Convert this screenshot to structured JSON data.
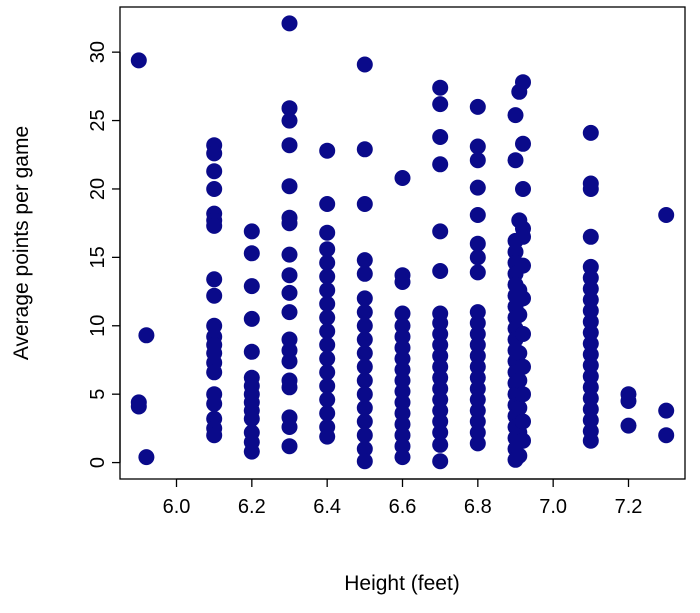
{
  "chart_data": {
    "type": "scatter",
    "title": "",
    "xlabel": "Height (feet)",
    "ylabel": "Average points per game",
    "xlim": [
      5.85,
      7.35
    ],
    "ylim": [
      -1.2,
      33.3
    ],
    "x_ticks": [
      6.0,
      6.2,
      6.4,
      6.6,
      6.8,
      7.0,
      7.2
    ],
    "x_tick_labels": [
      "6.0",
      "6.2",
      "6.4",
      "6.6",
      "6.8",
      "7.0",
      "7.2"
    ],
    "y_ticks": [
      0,
      5,
      10,
      15,
      20,
      25,
      30
    ],
    "y_tick_labels": [
      "0",
      "5",
      "10",
      "15",
      "20",
      "25",
      "30"
    ],
    "grid": false,
    "marker_color": "#0a0a8a",
    "points": [
      [
        5.9,
        29.4
      ],
      [
        5.9,
        4.1
      ],
      [
        5.9,
        4.4
      ],
      [
        5.92,
        9.3
      ],
      [
        5.92,
        0.4
      ],
      [
        6.1,
        23.2
      ],
      [
        6.1,
        22.6
      ],
      [
        6.1,
        21.3
      ],
      [
        6.1,
        20.0
      ],
      [
        6.1,
        18.2
      ],
      [
        6.1,
        17.7
      ],
      [
        6.1,
        17.3
      ],
      [
        6.1,
        13.4
      ],
      [
        6.1,
        12.2
      ],
      [
        6.1,
        10.0
      ],
      [
        6.1,
        9.2
      ],
      [
        6.1,
        8.6
      ],
      [
        6.1,
        8.0
      ],
      [
        6.1,
        7.3
      ],
      [
        6.1,
        6.6
      ],
      [
        6.1,
        5.0
      ],
      [
        6.1,
        4.3
      ],
      [
        6.1,
        3.2
      ],
      [
        6.1,
        2.5
      ],
      [
        6.1,
        2.0
      ],
      [
        6.2,
        16.9
      ],
      [
        6.2,
        15.3
      ],
      [
        6.2,
        12.9
      ],
      [
        6.2,
        10.5
      ],
      [
        6.2,
        8.1
      ],
      [
        6.2,
        6.2
      ],
      [
        6.2,
        5.6
      ],
      [
        6.2,
        5.0
      ],
      [
        6.2,
        4.4
      ],
      [
        6.2,
        3.8
      ],
      [
        6.2,
        3.2
      ],
      [
        6.2,
        2.2
      ],
      [
        6.2,
        1.5
      ],
      [
        6.2,
        0.8
      ],
      [
        6.3,
        32.1
      ],
      [
        6.3,
        25.9
      ],
      [
        6.3,
        25.0
      ],
      [
        6.3,
        23.2
      ],
      [
        6.3,
        20.2
      ],
      [
        6.3,
        17.9
      ],
      [
        6.3,
        17.5
      ],
      [
        6.3,
        15.2
      ],
      [
        6.3,
        13.7
      ],
      [
        6.3,
        12.4
      ],
      [
        6.3,
        11.0
      ],
      [
        6.3,
        9.0
      ],
      [
        6.3,
        8.2
      ],
      [
        6.3,
        7.4
      ],
      [
        6.3,
        6.0
      ],
      [
        6.3,
        5.5
      ],
      [
        6.3,
        3.3
      ],
      [
        6.3,
        2.6
      ],
      [
        6.3,
        1.2
      ],
      [
        6.4,
        22.8
      ],
      [
        6.4,
        18.9
      ],
      [
        6.4,
        16.8
      ],
      [
        6.4,
        15.6
      ],
      [
        6.4,
        14.6
      ],
      [
        6.4,
        13.6
      ],
      [
        6.4,
        12.6
      ],
      [
        6.4,
        11.6
      ],
      [
        6.4,
        10.6
      ],
      [
        6.4,
        9.6
      ],
      [
        6.4,
        8.6
      ],
      [
        6.4,
        7.6
      ],
      [
        6.4,
        6.6
      ],
      [
        6.4,
        5.6
      ],
      [
        6.4,
        4.6
      ],
      [
        6.4,
        3.6
      ],
      [
        6.4,
        2.6
      ],
      [
        6.4,
        1.9
      ],
      [
        6.5,
        29.1
      ],
      [
        6.5,
        22.9
      ],
      [
        6.5,
        18.9
      ],
      [
        6.5,
        14.8
      ],
      [
        6.5,
        13.8
      ],
      [
        6.5,
        12.0
      ],
      [
        6.5,
        11.0
      ],
      [
        6.5,
        10.0
      ],
      [
        6.5,
        9.0
      ],
      [
        6.5,
        8.0
      ],
      [
        6.5,
        7.0
      ],
      [
        6.5,
        6.0
      ],
      [
        6.5,
        5.0
      ],
      [
        6.5,
        4.0
      ],
      [
        6.5,
        3.0
      ],
      [
        6.5,
        2.0
      ],
      [
        6.5,
        1.0
      ],
      [
        6.5,
        0.1
      ],
      [
        6.6,
        20.8
      ],
      [
        6.6,
        13.7
      ],
      [
        6.6,
        13.2
      ],
      [
        6.6,
        10.9
      ],
      [
        6.6,
        10.0
      ],
      [
        6.6,
        9.2
      ],
      [
        6.6,
        8.4
      ],
      [
        6.6,
        7.6
      ],
      [
        6.6,
        6.8
      ],
      [
        6.6,
        6.0
      ],
      [
        6.6,
        5.2
      ],
      [
        6.6,
        4.4
      ],
      [
        6.6,
        3.6
      ],
      [
        6.6,
        2.8
      ],
      [
        6.6,
        2.0
      ],
      [
        6.6,
        1.2
      ],
      [
        6.6,
        0.4
      ],
      [
        6.7,
        27.4
      ],
      [
        6.7,
        26.2
      ],
      [
        6.7,
        23.8
      ],
      [
        6.7,
        21.8
      ],
      [
        6.7,
        16.9
      ],
      [
        6.7,
        14.0
      ],
      [
        6.7,
        10.9
      ],
      [
        6.7,
        10.2
      ],
      [
        6.7,
        9.4
      ],
      [
        6.7,
        8.6
      ],
      [
        6.7,
        7.8
      ],
      [
        6.7,
        7.0
      ],
      [
        6.7,
        6.2
      ],
      [
        6.7,
        5.4
      ],
      [
        6.7,
        4.6
      ],
      [
        6.7,
        3.8
      ],
      [
        6.7,
        3.0
      ],
      [
        6.7,
        2.2
      ],
      [
        6.7,
        1.3
      ],
      [
        6.7,
        0.1
      ],
      [
        6.8,
        26.0
      ],
      [
        6.8,
        23.1
      ],
      [
        6.8,
        22.1
      ],
      [
        6.8,
        20.1
      ],
      [
        6.8,
        18.1
      ],
      [
        6.8,
        16.0
      ],
      [
        6.8,
        15.0
      ],
      [
        6.8,
        13.9
      ],
      [
        6.8,
        11.0
      ],
      [
        6.8,
        10.2
      ],
      [
        6.8,
        9.4
      ],
      [
        6.8,
        8.6
      ],
      [
        6.8,
        7.8
      ],
      [
        6.8,
        7.0
      ],
      [
        6.8,
        6.2
      ],
      [
        6.8,
        5.4
      ],
      [
        6.8,
        4.6
      ],
      [
        6.8,
        3.8
      ],
      [
        6.8,
        3.0
      ],
      [
        6.8,
        2.2
      ],
      [
        6.8,
        1.4
      ],
      [
        6.9,
        25.4
      ],
      [
        6.9,
        22.1
      ],
      [
        6.9,
        16.2
      ],
      [
        6.9,
        15.4
      ],
      [
        6.9,
        14.6
      ],
      [
        6.9,
        13.8
      ],
      [
        6.9,
        13.0
      ],
      [
        6.9,
        12.2
      ],
      [
        6.9,
        11.4
      ],
      [
        6.9,
        10.6
      ],
      [
        6.9,
        9.8
      ],
      [
        6.9,
        9.0
      ],
      [
        6.9,
        8.2
      ],
      [
        6.9,
        7.4
      ],
      [
        6.9,
        6.6
      ],
      [
        6.9,
        5.8
      ],
      [
        6.9,
        5.0
      ],
      [
        6.9,
        4.2
      ],
      [
        6.9,
        3.4
      ],
      [
        6.9,
        2.6
      ],
      [
        6.9,
        1.8
      ],
      [
        6.9,
        1.0
      ],
      [
        6.9,
        0.2
      ],
      [
        6.91,
        27.1
      ],
      [
        6.91,
        17.7
      ],
      [
        6.91,
        12.6
      ],
      [
        6.91,
        10.8
      ],
      [
        6.91,
        8.0
      ],
      [
        6.91,
        6.0
      ],
      [
        6.91,
        4.0
      ],
      [
        6.91,
        2.2
      ],
      [
        6.91,
        0.5
      ],
      [
        6.92,
        27.8
      ],
      [
        6.92,
        23.3
      ],
      [
        6.92,
        20.0
      ],
      [
        6.92,
        17.1
      ],
      [
        6.92,
        16.5
      ],
      [
        6.92,
        14.4
      ],
      [
        6.92,
        12.0
      ],
      [
        6.92,
        9.4
      ],
      [
        6.92,
        7.0
      ],
      [
        6.92,
        5.0
      ],
      [
        6.92,
        3.0
      ],
      [
        6.92,
        1.6
      ],
      [
        7.1,
        24.1
      ],
      [
        7.1,
        20.4
      ],
      [
        7.1,
        20.0
      ],
      [
        7.1,
        16.5
      ],
      [
        7.1,
        14.3
      ],
      [
        7.1,
        13.5
      ],
      [
        7.1,
        12.7
      ],
      [
        7.1,
        11.9
      ],
      [
        7.1,
        11.1
      ],
      [
        7.1,
        10.3
      ],
      [
        7.1,
        9.5
      ],
      [
        7.1,
        8.7
      ],
      [
        7.1,
        7.9
      ],
      [
        7.1,
        7.1
      ],
      [
        7.1,
        6.3
      ],
      [
        7.1,
        5.5
      ],
      [
        7.1,
        4.7
      ],
      [
        7.1,
        3.9
      ],
      [
        7.1,
        3.1
      ],
      [
        7.1,
        2.3
      ],
      [
        7.1,
        1.6
      ],
      [
        7.2,
        5.0
      ],
      [
        7.2,
        4.5
      ],
      [
        7.2,
        2.7
      ],
      [
        7.3,
        18.1
      ],
      [
        7.3,
        3.8
      ],
      [
        7.3,
        2.0
      ]
    ]
  }
}
